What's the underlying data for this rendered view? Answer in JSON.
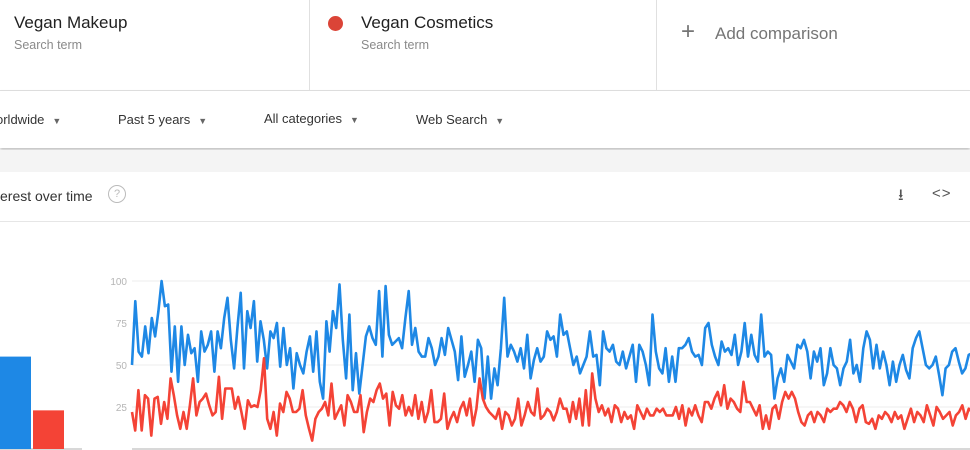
{
  "search_terms": [
    {
      "name": "Vegan Makeup",
      "subtitle": "Search term",
      "color": "#4285f4"
    },
    {
      "name": "Vegan Cosmetics",
      "subtitle": "Search term",
      "color": "#db4437"
    }
  ],
  "add_comparison": {
    "icon": "plus-icon",
    "label": "Add comparison"
  },
  "filters": [
    {
      "label": "orldwide"
    },
    {
      "label": "Past 5 years"
    },
    {
      "label": "All categories"
    },
    {
      "label": "Web Search"
    }
  ],
  "card": {
    "title": "erest over time",
    "help_icon": "?",
    "download_icon": "download-icon",
    "embed_icon": "embed-icon"
  },
  "chart_data": {
    "type": "line",
    "ylim": [
      0,
      100
    ],
    "yticks": [
      "100",
      "75",
      "50",
      "25"
    ],
    "grid": true,
    "averages": [
      {
        "term": "Vegan Makeup",
        "value": 55,
        "color": "#1e88e5"
      },
      {
        "term": "Vegan Cosmetics",
        "value": 23,
        "color": "#f44336"
      }
    ],
    "series": [
      {
        "name": "Vegan Makeup",
        "color": "#1e88e5",
        "values": [
          50,
          88,
          58,
          55,
          73,
          57,
          78,
          67,
          82,
          100,
          85,
          86,
          46,
          73,
          40,
          73,
          50,
          68,
          57,
          60,
          40,
          70,
          58,
          62,
          70,
          46,
          70,
          60,
          78,
          90,
          65,
          48,
          72,
          93,
          48,
          82,
          72,
          88,
          52,
          76,
          65,
          48,
          70,
          66,
          75,
          49,
          72,
          50,
          60,
          36,
          57,
          50,
          45,
          58,
          67,
          46,
          70,
          40,
          30,
          76,
          58,
          82,
          72,
          98,
          65,
          42,
          80,
          35,
          57,
          33,
          50,
          67,
          73,
          66,
          62,
          94,
          55,
          97,
          68,
          62,
          64,
          66,
          60,
          78,
          94,
          62,
          72,
          58,
          55,
          55,
          66,
          60,
          50,
          55,
          66,
          56,
          72,
          65,
          58,
          41,
          67,
          43,
          50,
          58,
          40,
          65,
          60,
          30,
          55,
          30,
          48,
          38,
          60,
          90,
          55,
          62,
          58,
          52,
          60,
          48,
          68,
          42,
          53,
          60,
          52,
          55,
          70,
          65,
          67,
          55,
          80,
          68,
          70,
          60,
          50,
          55,
          45,
          50,
          55,
          70,
          55,
          56,
          38,
          70,
          60,
          58,
          62,
          52,
          50,
          58,
          48,
          55,
          62,
          40,
          62,
          58,
          50,
          38,
          80,
          58,
          48,
          45,
          60,
          40,
          55,
          40,
          60,
          60,
          62,
          66,
          58,
          55,
          56,
          50,
          72,
          75,
          62,
          55,
          50,
          64,
          58,
          60,
          56,
          68,
          50,
          58,
          75,
          55,
          68,
          56,
          52,
          80,
          55,
          58,
          56,
          30,
          42,
          48,
          40,
          56,
          52,
          48,
          62,
          60,
          65,
          58,
          42,
          58,
          52,
          60,
          38,
          45,
          60,
          50,
          48,
          38,
          48,
          52,
          65,
          45,
          50,
          40,
          60,
          70,
          65,
          48,
          62,
          48,
          58,
          50,
          38,
          52,
          40,
          50,
          56,
          47,
          42,
          60,
          66,
          70,
          60,
          50,
          48,
          50,
          55,
          44,
          32,
          48,
          50,
          58,
          60,
          52,
          45,
          48,
          56,
          57
        ]
      },
      {
        "name": "Vegan Cosmetics",
        "color": "#f44336",
        "values": [
          22,
          11,
          35,
          11,
          32,
          30,
          8,
          30,
          31,
          15,
          28,
          18,
          42,
          32,
          20,
          12,
          22,
          12,
          26,
          42,
          20,
          28,
          30,
          33,
          26,
          20,
          22,
          43,
          18,
          36,
          36,
          36,
          24,
          31,
          22,
          12,
          29,
          25,
          26,
          25,
          35,
          54,
          18,
          12,
          22,
          8,
          27,
          22,
          34,
          30,
          22,
          22,
          24,
          35,
          20,
          12,
          5,
          18,
          22,
          24,
          28,
          20,
          39,
          18,
          22,
          26,
          14,
          32,
          28,
          22,
          22,
          32,
          10,
          22,
          30,
          28,
          35,
          39,
          30,
          33,
          14,
          34,
          26,
          24,
          32,
          20,
          25,
          20,
          32,
          18,
          28,
          16,
          22,
          35,
          16,
          16,
          18,
          33,
          12,
          18,
          22,
          16,
          24,
          28,
          20,
          30,
          14,
          24,
          42,
          30,
          25,
          22,
          20,
          18,
          24,
          12,
          22,
          20,
          14,
          18,
          30,
          14,
          20,
          28,
          22,
          20,
          36,
          18,
          20,
          24,
          22,
          17,
          22,
          30,
          24,
          24,
          16,
          28,
          18,
          30,
          14,
          35,
          14,
          45,
          30,
          22,
          26,
          20,
          24,
          16,
          26,
          24,
          16,
          22,
          18,
          20,
          12,
          26,
          22,
          18,
          24,
          20,
          20,
          24,
          22,
          24,
          20,
          20,
          20,
          25,
          18,
          26,
          14,
          24,
          20,
          26,
          20,
          16,
          28,
          28,
          24,
          30,
          34,
          26,
          38,
          24,
          30,
          28,
          24,
          22,
          40,
          28,
          28,
          24,
          20,
          26,
          12,
          20,
          12,
          24,
          26,
          18,
          28,
          34,
          30,
          34,
          30,
          22,
          16,
          14,
          20,
          22,
          16,
          22,
          20,
          16,
          24,
          22,
          24,
          24,
          28,
          26,
          22,
          28,
          24,
          16,
          24,
          26,
          16,
          15,
          18,
          12,
          20,
          18,
          22,
          20,
          16,
          22,
          18,
          20,
          12,
          18,
          24,
          16,
          22,
          20,
          16,
          26,
          20,
          14,
          25,
          22,
          18,
          20,
          22,
          14,
          20,
          22,
          26,
          18,
          24,
          22
        ]
      }
    ]
  }
}
